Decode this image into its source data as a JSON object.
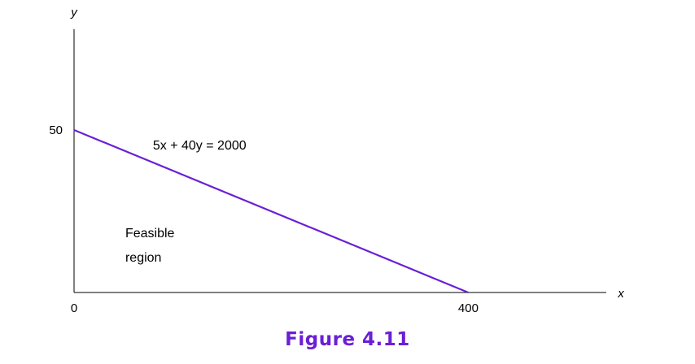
{
  "figure": {
    "caption": "Figure 4.11"
  },
  "colors": {
    "constraint_line": "#6a1fd6",
    "caption": "#6a1fd6",
    "axes": "#000000"
  },
  "chart_data": {
    "type": "line",
    "xlabel": "x",
    "ylabel": "y",
    "xlim": [
      0,
      540
    ],
    "ylim": [
      0,
      81
    ],
    "x_ticks": [
      {
        "value": 0,
        "label": "0"
      },
      {
        "value": 400,
        "label": "400"
      }
    ],
    "y_ticks": [
      {
        "value": 50,
        "label": "50"
      }
    ],
    "series": [
      {
        "points": [
          {
            "x": 0,
            "y": 50
          },
          {
            "x": 400,
            "y": 0
          }
        ]
      }
    ],
    "annotations": {
      "equation": {
        "label": "5x  +  40y  =  2000",
        "x": 80,
        "y": 44
      },
      "region_line1": {
        "label": "Feasible",
        "x": 52,
        "y": 17
      },
      "region_line2": {
        "label": "region",
        "x": 52,
        "y": 9.5
      }
    },
    "grid": false,
    "legend": "none"
  }
}
